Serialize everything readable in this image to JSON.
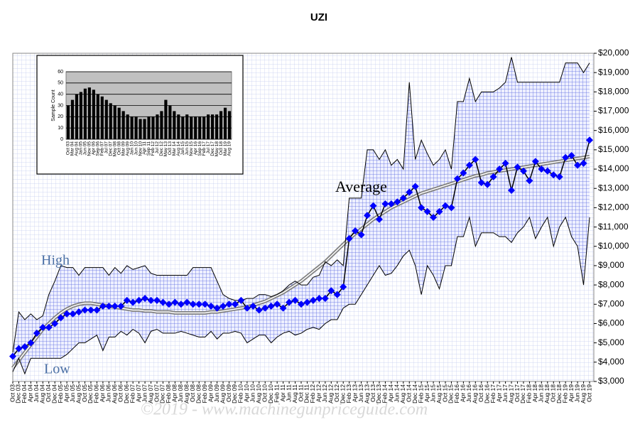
{
  "chart_data": [
    {
      "type": "line",
      "title": "UZI",
      "watermark": "©2019 - www.machinegunpriceguide.com",
      "categories": [
        "Oct 03",
        "Dec 03",
        "Feb 04",
        "Apr 04",
        "Jun 04",
        "Aug 04",
        "Oct 04",
        "Dec 04",
        "Feb 05",
        "Apr 05",
        "Jun 05",
        "Aug 05",
        "Oct 05",
        "Dec 05",
        "Feb 06",
        "Apr 06",
        "Jun 06",
        "Aug 06",
        "Oct 06",
        "Dec 06",
        "Feb 07",
        "Apr 07",
        "Jun 07",
        "Aug 07",
        "Oct 07",
        "Dec 07",
        "Feb 08",
        "Apr 08",
        "Jun 08",
        "Aug 08",
        "Oct 08",
        "Dec 08",
        "Feb 09",
        "Apr 09",
        "Jun 09",
        "Aug 09",
        "Oct 09",
        "Dec 09",
        "Feb 10",
        "Apr 10",
        "Jun 10",
        "Aug 10",
        "Oct 10",
        "Dec 10",
        "Feb 11",
        "Apr 11",
        "Jun 11",
        "Aug 11",
        "Oct 11",
        "Dec 11",
        "Feb 12",
        "Apr 12",
        "Jun 12",
        "Aug 12",
        "Oct 12",
        "Dec 12",
        "Feb 13",
        "Apr 13",
        "Jun 13",
        "Aug 13",
        "Oct 13",
        "Dec 13",
        "Feb 14",
        "Apr 14",
        "Jun 14",
        "Aug 14",
        "Oct 14",
        "Dec 14",
        "Feb 15",
        "Apr 15",
        "Jun 15",
        "Aug 15",
        "Oct 15",
        "Dec 15",
        "Feb 16",
        "Apr 16",
        "Jun 16",
        "Aug 16",
        "Oct 16",
        "Dec 16",
        "Feb 17",
        "Apr 17",
        "Jun 17",
        "Aug 17",
        "Oct 17",
        "Dec 17",
        "Feb 18",
        "Apr 18",
        "Jun 18",
        "Aug 18",
        "Oct 18",
        "Dec 18",
        "Feb 19",
        "Apr 19",
        "Jun 19",
        "Aug 19",
        "Oct 19"
      ],
      "series": [
        {
          "name": "Average",
          "color": "#0000ff",
          "values": [
            4300,
            4700,
            4800,
            5000,
            5500,
            5800,
            5800,
            6000,
            6300,
            6500,
            6500,
            6600,
            6700,
            6700,
            6700,
            6900,
            6900,
            6900,
            6900,
            7200,
            7100,
            7200,
            7300,
            7200,
            7200,
            7100,
            7000,
            7100,
            7000,
            7100,
            7000,
            7000,
            7000,
            6900,
            6800,
            6900,
            7000,
            7000,
            7200,
            6800,
            6900,
            6700,
            6800,
            6900,
            7000,
            6800,
            7100,
            7200,
            7000,
            7100,
            7200,
            7300,
            7300,
            7700,
            7500,
            7900,
            10400,
            10800,
            10600,
            11600,
            12100,
            11400,
            12200,
            12200,
            12300,
            12500,
            12800,
            13100,
            12000,
            11800,
            11500,
            11800,
            12100,
            12000,
            13500,
            13800,
            14200,
            14500,
            13300,
            13200,
            13600,
            14000,
            14300,
            12900,
            14100,
            13900,
            13400,
            14400,
            14000,
            13900,
            13700,
            13600,
            14600,
            14700,
            14200,
            14300,
            15500
          ]
        },
        {
          "name": "High",
          "color": "#000000",
          "values": [
            4500,
            6600,
            6200,
            6500,
            6200,
            6400,
            7500,
            8200,
            9000,
            8900,
            8900,
            8500,
            8900,
            8900,
            8900,
            8900,
            8500,
            8900,
            8600,
            9000,
            8800,
            8900,
            9000,
            8600,
            8500,
            8500,
            8500,
            8500,
            8500,
            8500,
            8900,
            8900,
            8900,
            8900,
            8200,
            7500,
            7300,
            7200,
            7200,
            7300,
            7300,
            7500,
            7500,
            7400,
            7500,
            7700,
            8000,
            8200,
            8000,
            8000,
            8400,
            8500,
            9200,
            9000,
            9300,
            9000,
            12500,
            12500,
            12500,
            15000,
            15000,
            14500,
            15000,
            14200,
            14500,
            14000,
            18500,
            14500,
            15500,
            14800,
            14200,
            14500,
            15000,
            14000,
            17500,
            17500,
            18700,
            17500,
            18000,
            18000,
            18000,
            18200,
            18500,
            19800,
            18500,
            18500,
            18500,
            18500,
            18500,
            18500,
            18500,
            18500,
            19500,
            19500,
            19500,
            19000,
            19500
          ]
        },
        {
          "name": "Low",
          "color": "#000000",
          "values": [
            3500,
            4200,
            3400,
            4200,
            4200,
            4200,
            4200,
            4200,
            4200,
            4400,
            4700,
            5000,
            5000,
            5200,
            5400,
            4600,
            5300,
            5300,
            5600,
            5400,
            5700,
            5500,
            5000,
            5600,
            5700,
            5500,
            5500,
            5500,
            5600,
            5500,
            5400,
            5300,
            5300,
            5600,
            5200,
            5500,
            5500,
            5600,
            5500,
            5000,
            5200,
            5400,
            5400,
            5000,
            5300,
            5500,
            5600,
            5400,
            5500,
            5700,
            5800,
            5700,
            6000,
            6200,
            6200,
            6800,
            7000,
            7000,
            7500,
            8000,
            8500,
            9000,
            8500,
            8600,
            9000,
            9500,
            9800,
            9000,
            7500,
            9000,
            8500,
            7800,
            9000,
            9000,
            10500,
            10500,
            11500,
            10000,
            10700,
            10700,
            10700,
            10500,
            10500,
            10200,
            10700,
            11000,
            11500,
            10400,
            11000,
            11500,
            10000,
            11000,
            11500,
            10500,
            10000,
            8000,
            11500
          ]
        },
        {
          "color": "#808080",
          "values": [
            3700,
            4100,
            4500,
            4900,
            5300,
            5700,
            6000,
            6300,
            6550,
            6750,
            6900,
            7000,
            7050,
            7050,
            7000,
            6950,
            6900,
            6850,
            6800,
            6750,
            6700,
            6700,
            6650,
            6650,
            6600,
            6600,
            6600,
            6550,
            6550,
            6550,
            6550,
            6550,
            6550,
            6600,
            6600,
            6650,
            6700,
            6750,
            6800,
            6850,
            6950,
            7050,
            7150,
            7300,
            7450,
            7600,
            7800,
            8000,
            8200,
            8450,
            8700,
            8950,
            9200,
            9500,
            9800,
            10100,
            10400,
            10650,
            10900,
            11150,
            11400,
            11600,
            11800,
            12000,
            12150,
            12300,
            12450,
            12600,
            12750,
            12850,
            12950,
            13050,
            13150,
            13250,
            13350,
            13450,
            13550,
            13650,
            13700,
            13800,
            13850,
            13900,
            13950,
            14000,
            14050,
            14100,
            14150,
            14200,
            14250,
            14300,
            14350,
            14400,
            14450,
            14500,
            14550,
            14600,
            14650
          ]
        }
      ],
      "ylim": [
        3000,
        20000
      ],
      "yticks": [
        {
          "value": 3000,
          "label": "$3,000"
        },
        {
          "value": 4000,
          "label": "$4,000"
        },
        {
          "value": 5000,
          "label": "$5,000"
        },
        {
          "value": 6000,
          "label": "$6,000"
        },
        {
          "value": 7000,
          "label": "$7,000"
        },
        {
          "value": 8000,
          "label": "$8,000"
        },
        {
          "value": 9000,
          "label": "$9,000"
        },
        {
          "value": 10000,
          "label": "$10,000"
        },
        {
          "value": 11000,
          "label": "$11,000"
        },
        {
          "value": 12000,
          "label": "$12,000"
        },
        {
          "value": 13000,
          "label": "$13,000"
        },
        {
          "value": 14000,
          "label": "$14,000"
        },
        {
          "value": 15000,
          "label": "$15,000"
        },
        {
          "value": 16000,
          "label": "$16,000"
        },
        {
          "value": 17000,
          "label": "$17,000"
        },
        {
          "value": 18000,
          "label": "$18,000"
        },
        {
          "value": 19000,
          "label": "$19,000"
        },
        {
          "value": 20000,
          "label": "$20,000"
        }
      ],
      "y_axis_side": "right",
      "grid": false
    },
    {
      "type": "bar",
      "ylabel": "Sample Count",
      "color": "#000000",
      "plot_background": "#c0c0c0",
      "grid": true,
      "categories": [
        "Oct 03",
        "Mar 04",
        "Aug 04",
        "Jan 05",
        "Jun 05",
        "Nov 05",
        "Apr 06",
        "Sep 06",
        "Feb 07",
        "Jul 07",
        "Dec 07",
        "May 08",
        "Oct 08",
        "Mar 09",
        "Aug 09",
        "Jan 10",
        "Jun 10",
        "Nov 10",
        "Apr 11",
        "Sep 11",
        "Feb 12",
        "Jul 12",
        "Dec 12",
        "May 13",
        "Oct 13",
        "Mar 14",
        "Aug 14",
        "Jan 15",
        "Jun 15",
        "Nov 15",
        "Apr 16",
        "Sep 16",
        "Feb 17",
        "Jul 17",
        "Dec 17",
        "May 18",
        "Oct 18",
        "Mar 19",
        "Aug 19"
      ],
      "values": [
        30,
        35,
        40,
        42,
        45,
        46,
        44,
        40,
        38,
        35,
        32,
        30,
        28,
        25,
        22,
        20,
        20,
        18,
        18,
        20,
        20,
        22,
        25,
        35,
        30,
        25,
        22,
        20,
        22,
        20,
        20,
        20,
        20,
        22,
        22,
        22,
        25,
        28,
        25
      ],
      "ylim": [
        0,
        60
      ],
      "yticks": [
        0,
        10,
        20,
        30,
        40,
        50,
        60
      ]
    }
  ]
}
